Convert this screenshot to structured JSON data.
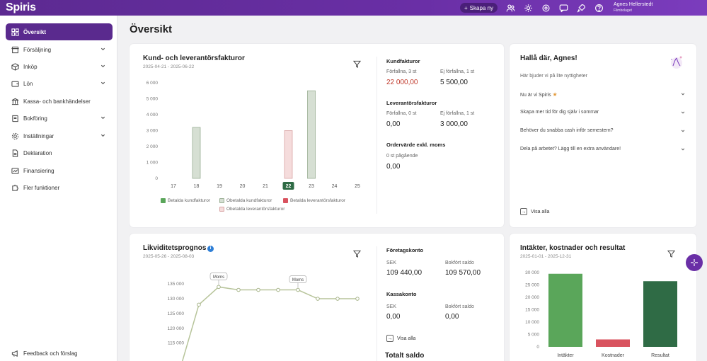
{
  "app": {
    "logo": "Spiris",
    "create_button": "Skapa ny",
    "user_name": "Agnes Hellerstedt",
    "user_company": "Filmbolaget",
    "top_icons": [
      "people-icon",
      "gear-icon",
      "settings-icon",
      "chat-icon",
      "rocket-icon",
      "help-icon"
    ]
  },
  "sidebar": {
    "items": [
      {
        "label": "Översikt",
        "icon": "grid-icon"
      },
      {
        "label": "Försäljning",
        "icon": "store-icon"
      },
      {
        "label": "Inköp",
        "icon": "box-icon"
      },
      {
        "label": "Lön",
        "icon": "wallet-icon"
      },
      {
        "label": "Kassa- och bankhändelser",
        "icon": "bank-icon"
      },
      {
        "label": "Bokföring",
        "icon": "book-icon"
      },
      {
        "label": "Inställningar",
        "icon": "gear-icon"
      },
      {
        "label": "Deklaration",
        "icon": "document-icon"
      },
      {
        "label": "Finansiering",
        "icon": "finance-icon"
      },
      {
        "label": "Fler funktioner",
        "icon": "puzzle-icon"
      }
    ],
    "feedback": "Feedback och förslag"
  },
  "page": {
    "title": "Översikt"
  },
  "invoices_card": {
    "title": "Kund- och leverantörsfakturor",
    "date_range": "2025-04-21 - 2025-06-22",
    "kund_heading": "Kundfakturor",
    "kund_overdue_label": "Förfallna, 3 st",
    "kund_overdue_value": "22 000,00",
    "kund_notdue_label": "Ej förfallna, 1 st",
    "kund_notdue_value": "5 500,00",
    "lev_heading": "Leverantörsfakturor",
    "lev_overdue_label": "Förfallna, 0 st",
    "lev_overdue_value": "0,00",
    "lev_notdue_label": "Ej förfallna, 1 st",
    "lev_notdue_value": "3 000,00",
    "order_heading": "Ordervärde exkl. moms",
    "order_label": "0 st pågående",
    "order_value": "0,00",
    "legend": [
      "Betalda kundfakturor",
      "Obetalda kundfakturor",
      "Betalda leverantörsfakturor",
      "Obetalda leverantörsfakturor"
    ]
  },
  "welcome_card": {
    "title": "Hallå där, Agnes!",
    "subtitle": "Här bjuder vi på lite nyttigheter",
    "items": [
      "Nu är vi Spiris",
      "Skapa mer tid för dig själv i sommar",
      "Behöver du snabba cash inför semestern?",
      "Dela på arbetet? Lägg till en extra användare!"
    ],
    "link": "Visa alla"
  },
  "liquidity_card": {
    "title": "Likviditetsprognos",
    "date_range": "2025-05-26 - 2025-08-03",
    "foretag_heading": "Företagskonto",
    "foretag_sek_label": "SEK",
    "foretag_sek_value": "109 440,00",
    "foretag_saldo_label": "Bokfört saldo",
    "foretag_saldo_value": "109 570,00",
    "kassa_heading": "Kassakonto",
    "kassa_sek_label": "SEK",
    "kassa_sek_value": "0,00",
    "kassa_saldo_label": "Bokfört saldo",
    "kassa_saldo_value": "0,00",
    "link": "Visa alla",
    "total_heading": "Totalt saldo"
  },
  "result_card": {
    "title": "Intäkter, kostnader och resultat",
    "date_range": "2025-01-01 - 2025-12-31"
  },
  "colors": {
    "brand": "#5a2a8e",
    "paid_customer": "#5aa65a",
    "unpaid_customer": "#d6dfd3",
    "paid_supplier": "#d9535f",
    "unpaid_supplier": "#f5dcdc",
    "red_value": "#c0392b"
  },
  "chart_data": [
    {
      "type": "bar",
      "categories": [
        "17",
        "18",
        "19",
        "20",
        "21",
        "22",
        "23",
        "24",
        "25"
      ],
      "highlight_category": "22",
      "series": [
        {
          "name": "Betalda kundfakturor",
          "values": [
            0,
            0,
            0,
            0,
            0,
            0,
            0,
            0,
            0
          ]
        },
        {
          "name": "Obetalda kundfakturor",
          "values": [
            0,
            3200,
            0,
            0,
            0,
            0,
            5500,
            0,
            0
          ]
        },
        {
          "name": "Betalda leverantörsfakturor",
          "values": [
            0,
            0,
            0,
            0,
            0,
            0,
            0,
            0,
            0
          ]
        },
        {
          "name": "Obetalda leverantörsfakturor",
          "values": [
            0,
            0,
            0,
            0,
            0,
            3000,
            0,
            0,
            0
          ]
        }
      ],
      "yticks": [
        "0",
        "1 000",
        "2 000",
        "3 000",
        "4 000",
        "5 000",
        "6 000"
      ],
      "ylim": [
        0,
        6000
      ],
      "grid": false,
      "legend_position": "bottom"
    },
    {
      "type": "line",
      "y": [
        105000,
        128000,
        134000,
        133000,
        133000,
        133000,
        133000,
        130000,
        130000,
        130000
      ],
      "annotations": [
        {
          "index": 2,
          "text": "Moms"
        },
        {
          "index": 6,
          "text": "Moms"
        }
      ],
      "yticks": [
        "115 000",
        "120 000",
        "125 000",
        "130 000",
        "135 000"
      ],
      "ylim": [
        113000,
        136000
      ],
      "grid": false
    },
    {
      "type": "bar",
      "categories": [
        "Intäkter",
        "Kostnader",
        "Resultat"
      ],
      "values": [
        29500,
        3000,
        26500
      ],
      "colors": [
        "#5aa65a",
        "#d9535f",
        "#2f6b45"
      ],
      "yticks": [
        "0",
        "5 000",
        "10 000",
        "15 000",
        "20 000",
        "25 000",
        "30 000"
      ],
      "ylim": [
        0,
        30000
      ],
      "grid": false
    }
  ]
}
